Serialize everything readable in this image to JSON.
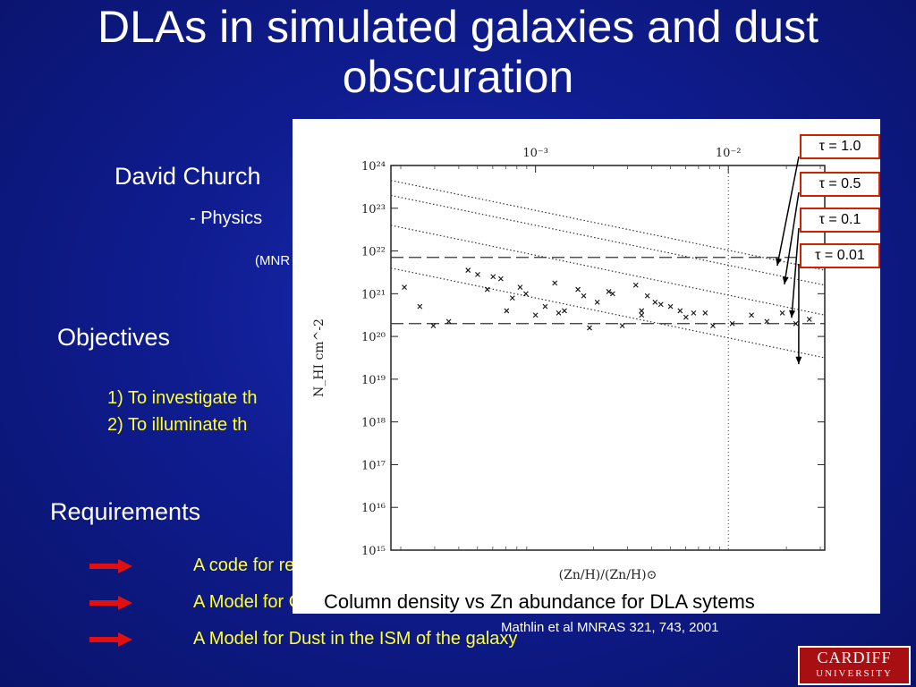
{
  "slide": {
    "title": "DLAs in simulated galaxies and dust obscuration",
    "author": "David Church",
    "affiliation": "-  Physics",
    "journal_fragment": "(MNR",
    "objectives_heading": "Objectives",
    "objectives": [
      "1) To investigate th",
      "2) To illuminate  th"
    ],
    "requirements_heading": "Requirements",
    "requirements": [
      "A code for resolved simulations of protogalaxy formation",
      "A Model for Chemical Heavy Element evolution for Simulation",
      "A Model for Dust in the ISM of the galaxy"
    ],
    "arrow_color": "#e01010",
    "text_highlight_color": "#ffff33"
  },
  "figure": {
    "tau_labels": [
      "τ = 1.0",
      "τ = 0.5",
      "τ = 0.1",
      "τ = 0.01"
    ],
    "caption": "Column density vs Zn abundance for DLA sytems",
    "citation": "Mathlin et al MNRAS 321, 743, 2001"
  },
  "chart_data": {
    "type": "scatter",
    "xlabel": "(Zn/H)/(Zn/H)⊙",
    "ylabel": "N_HI cm^-2",
    "xscale": "log",
    "yscale": "log",
    "xlim_log10": [
      -3.75,
      -1.5
    ],
    "ylim_log10": [
      15,
      24
    ],
    "x_ticks_log10": [
      -3,
      -2
    ],
    "x_tick_labels": [
      "10⁻³",
      "10⁻²"
    ],
    "y_ticks_log10": [
      15,
      16,
      17,
      18,
      19,
      20,
      21,
      22,
      23,
      24
    ],
    "y_tick_labels": [
      "10¹⁵",
      "10¹⁶",
      "10¹⁷",
      "10¹⁸",
      "10¹⁹",
      "10²⁰",
      "10²¹",
      "10²²",
      "10²³",
      "10²⁴"
    ],
    "dashed_hlines_log10": [
      21.85,
      20.3
    ],
    "dotted_vline_log10": -2,
    "series": [
      {
        "name": "τ = 1.0",
        "line": [
          [
            -3.75,
            23.65
          ],
          [
            -1.5,
            21.55
          ]
        ]
      },
      {
        "name": "τ = 0.5",
        "line": [
          [
            -3.75,
            23.3
          ],
          [
            -1.5,
            21.2
          ]
        ]
      },
      {
        "name": "τ = 0.1",
        "line": [
          [
            -3.75,
            22.6
          ],
          [
            -1.5,
            20.5
          ]
        ]
      },
      {
        "name": "τ = 0.01",
        "line": [
          [
            -3.75,
            21.6
          ],
          [
            -1.5,
            19.5
          ]
        ]
      }
    ],
    "points": [
      [
        -3.68,
        21.15
      ],
      [
        -3.6,
        20.7
      ],
      [
        -3.53,
        20.25
      ],
      [
        -3.45,
        20.35
      ],
      [
        -3.3,
        21.45
      ],
      [
        -3.25,
        21.1
      ],
      [
        -3.22,
        21.4
      ],
      [
        -3.18,
        21.35
      ],
      [
        -3.15,
        20.6
      ],
      [
        -3.12,
        20.9
      ],
      [
        -3.05,
        21.0
      ],
      [
        -3.0,
        20.5
      ],
      [
        -2.95,
        20.7
      ],
      [
        -2.88,
        20.55
      ],
      [
        -2.85,
        20.6
      ],
      [
        -2.78,
        21.1
      ],
      [
        -2.75,
        20.95
      ],
      [
        -2.72,
        20.2
      ],
      [
        -2.68,
        20.8
      ],
      [
        -2.62,
        21.05
      ],
      [
        -2.6,
        21.0
      ],
      [
        -2.55,
        20.25
      ],
      [
        -2.48,
        21.2
      ],
      [
        -2.45,
        20.6
      ],
      [
        -2.42,
        20.95
      ],
      [
        -2.38,
        20.8
      ],
      [
        -2.35,
        20.75
      ],
      [
        -2.3,
        20.7
      ],
      [
        -2.25,
        20.6
      ],
      [
        -2.22,
        20.45
      ],
      [
        -2.18,
        20.55
      ],
      [
        -2.12,
        20.55
      ],
      [
        -2.08,
        20.25
      ],
      [
        -1.98,
        20.3
      ],
      [
        -1.88,
        20.5
      ],
      [
        -1.8,
        20.35
      ],
      [
        -1.72,
        20.55
      ],
      [
        -1.65,
        20.3
      ],
      [
        -1.58,
        20.4
      ],
      [
        -2.45,
        20.5
      ],
      [
        -3.35,
        21.55
      ],
      [
        -2.9,
        21.25
      ],
      [
        -3.08,
        21.15
      ]
    ]
  }
}
